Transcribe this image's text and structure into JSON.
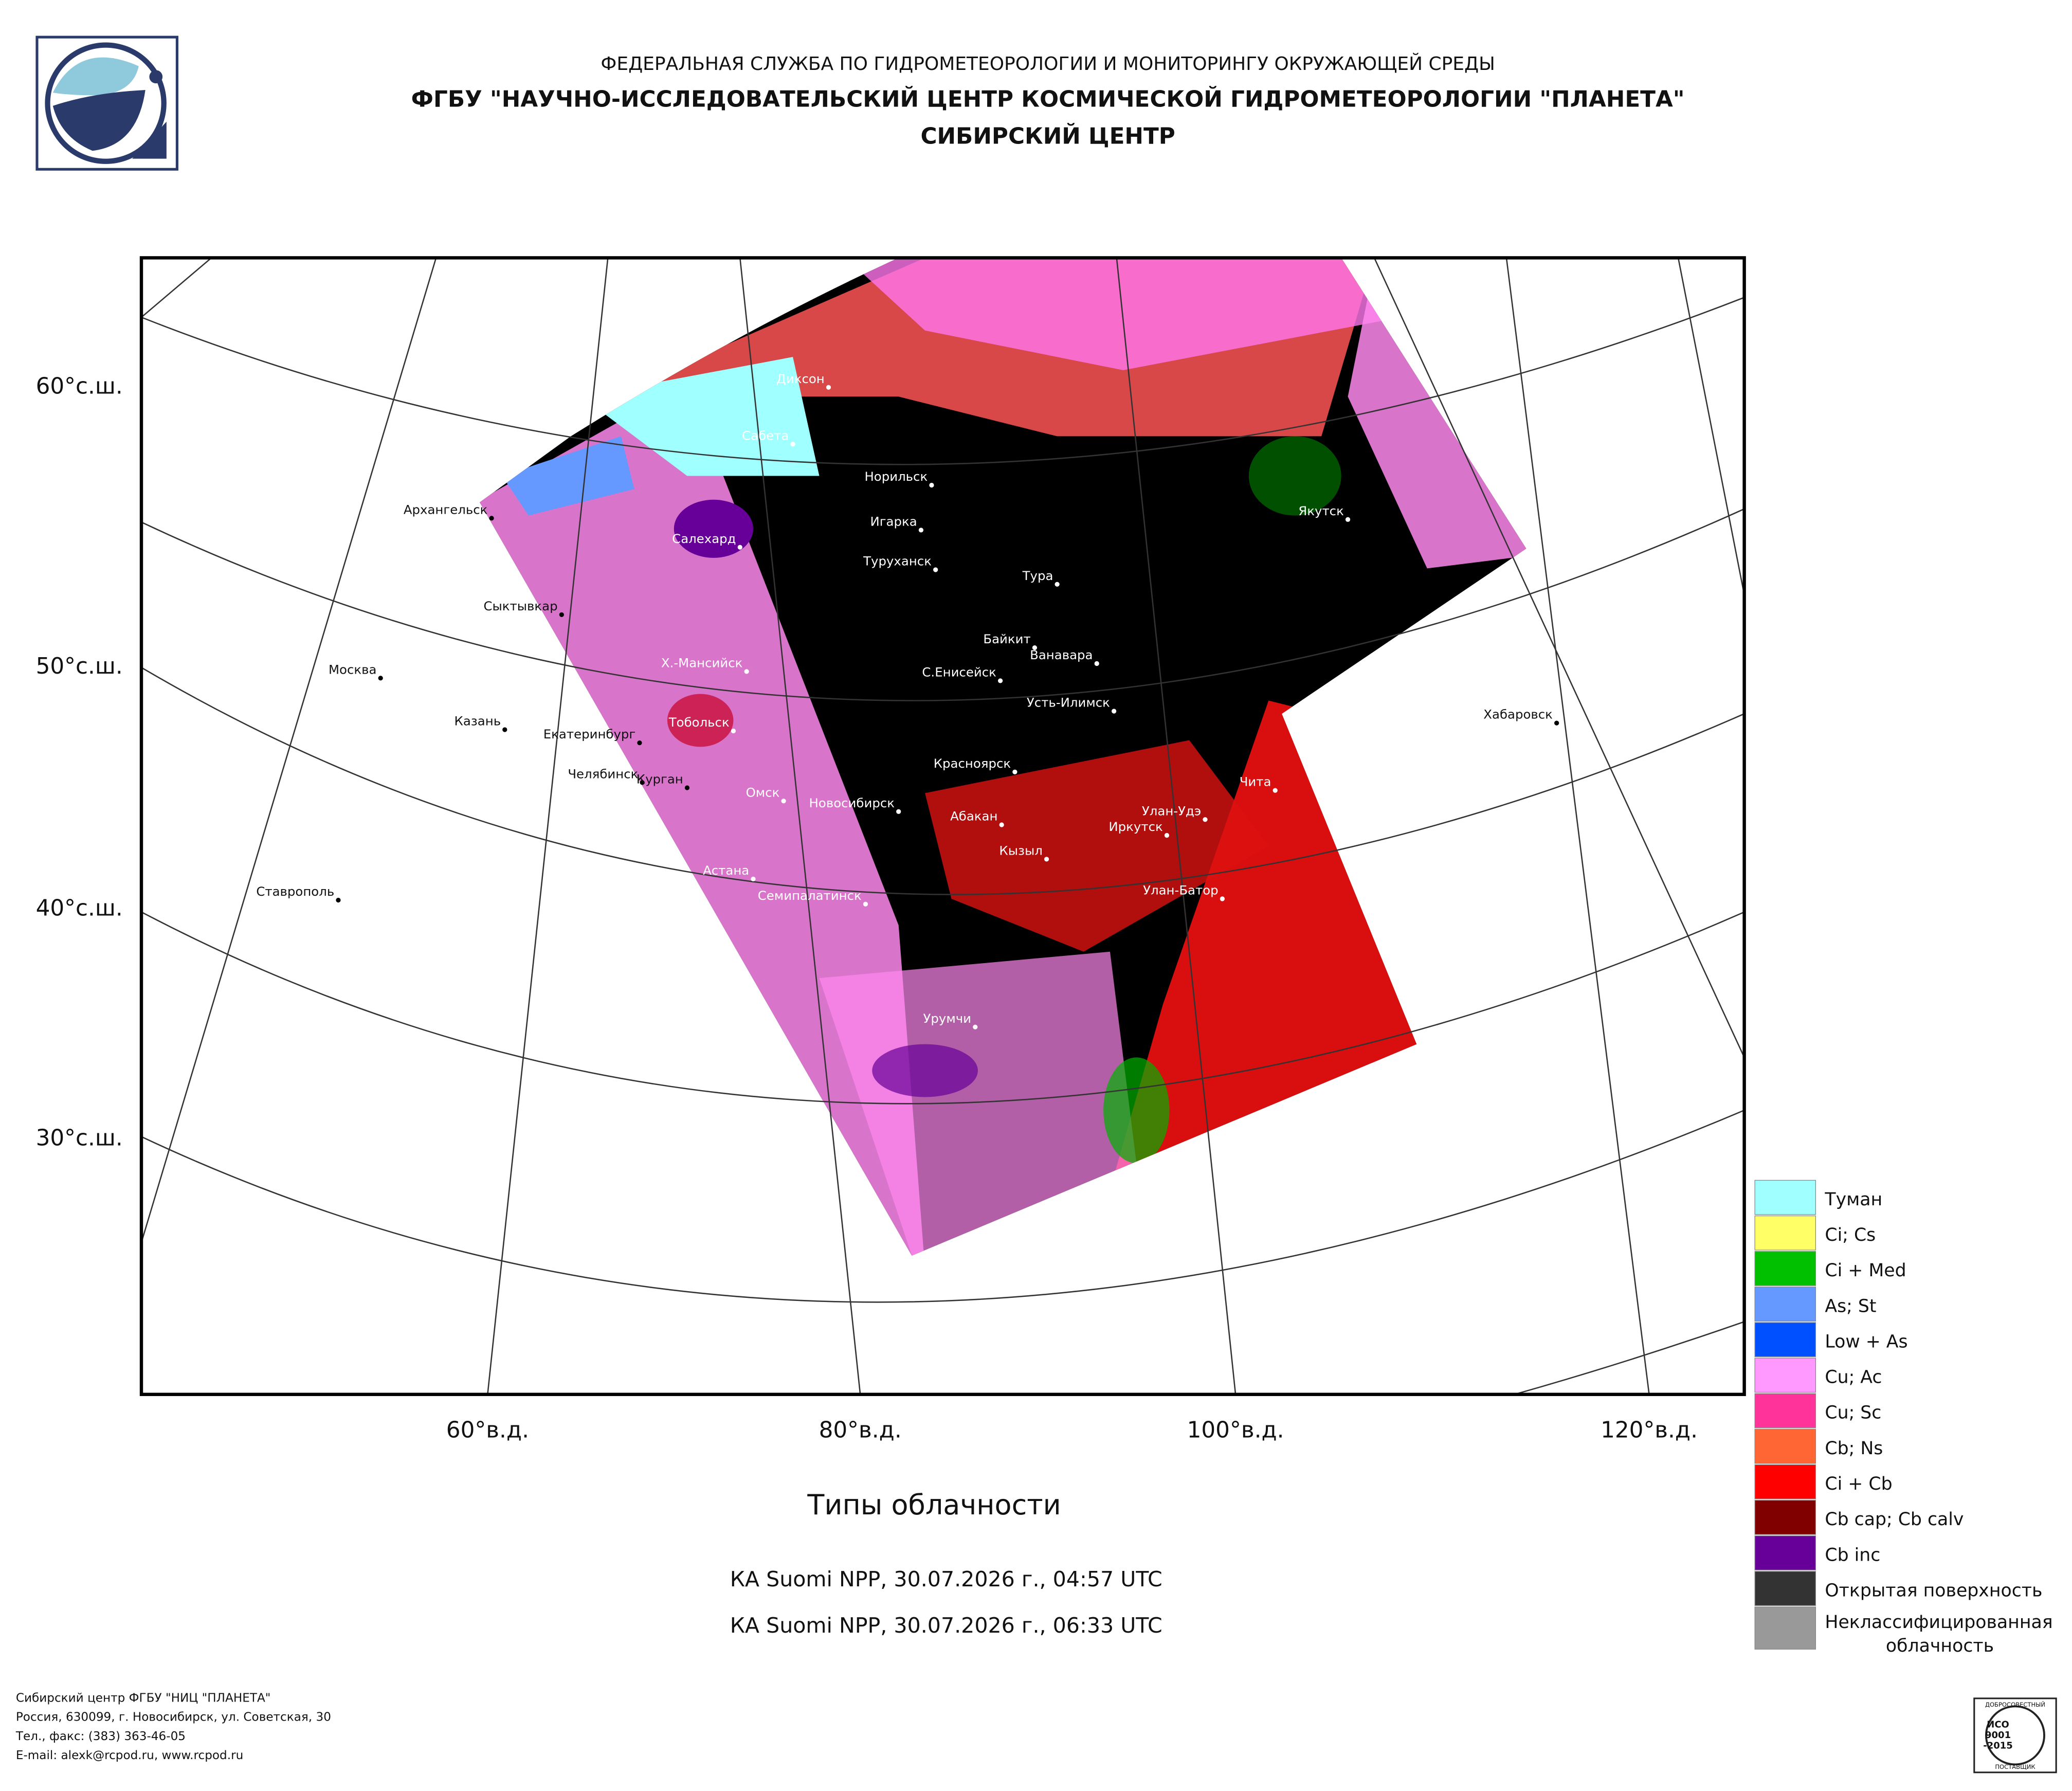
{
  "header": {
    "agency": "ФЕДЕРАЛЬНАЯ СЛУЖБА ПО ГИДРОМЕТЕОРОЛОГИИ И МОНИТОРИНГУ ОКРУЖАЮЩЕЙ СРЕДЫ",
    "center": "ФГБУ \"НАУЧНО-ИССЛЕДОВАТЕЛЬСКИЙ ЦЕНТР КОСМИЧЕСКОЙ ГИДРОМЕТЕОРОЛОГИИ \"ПЛАНЕТА\"",
    "branch": "СИБИРСКИЙ ЦЕНТР"
  },
  "map": {
    "lat_labels": [
      "60°с.ш.",
      "50°с.ш.",
      "40°с.ш.",
      "30°с.ш."
    ],
    "lon_labels": [
      "60°в.д.",
      "80°в.д.",
      "100°в.д.",
      "120°в.д."
    ],
    "cities": [
      "Диксон",
      "Сабета",
      "Норильск",
      "Архангельск",
      "Игарка",
      "Салехард",
      "Якутск",
      "Туруханск",
      "Тура",
      "Сыктывкар",
      "Байкит",
      "Ванавара",
      "Москва",
      "Х.-Мансийск",
      "С.Енисейск",
      "Усть-Илимск",
      "Хабаровск",
      "Казань",
      "Тобольск",
      "Екатеринбург",
      "Красноярск",
      "Челябинск",
      "Курган",
      "Чита",
      "Омск",
      "Новосибирск",
      "Абакан",
      "Улан-Удэ",
      "Иркутск",
      "Кызыл",
      "Астана",
      "Ставрополь",
      "Улан-Батор",
      "Семипалатинск",
      "Урумчи"
    ]
  },
  "legend": {
    "items": [
      {
        "label": "Туман",
        "color": "#a0ffff"
      },
      {
        "label": "Ci; Cs",
        "color": "#ffff66"
      },
      {
        "label": "Ci + Med",
        "color": "#00c000"
      },
      {
        "label": "As; St",
        "color": "#6699ff"
      },
      {
        "label": "Low + As",
        "color": "#0050ff"
      },
      {
        "label": "Cu; Ac",
        "color": "#ff99ff"
      },
      {
        "label": "Cu; Sc",
        "color": "#ff3399"
      },
      {
        "label": "Cb; Ns",
        "color": "#ff6633"
      },
      {
        "label": "Ci + Cb",
        "color": "#ff0000"
      },
      {
        "label": "Cb cap; Cb calv",
        "color": "#800000"
      },
      {
        "label": "Cb inc",
        "color": "#660099"
      },
      {
        "label": "Открытая поверхность",
        "color": "#333333"
      },
      {
        "label": "Неклассифицированная облачность",
        "color": "#999999"
      }
    ]
  },
  "title": "Типы облачности",
  "passes": [
    "КА Suomi NPP, 30.07.2026 г., 04:57 UTC",
    "КА Suomi NPP, 30.07.2026 г., 06:33 UTC"
  ],
  "footer": {
    "lines": [
      "Сибирский центр ФГБУ \"НИЦ \"ПЛАНЕТА\"",
      "Россия, 630099, г. Новосибирск, ул. Советская, 30",
      "Тел., факс: (383) 363-46-05",
      "E-mail: alexk@rcpod.ru, www.rcpod.ru"
    ]
  },
  "certificate": {
    "top": "ДОБРОСОВЕСТНЫЙ",
    "lines": [
      "ИСО",
      "9001",
      "-2015"
    ],
    "bottom": "ПОСТАВЩИК"
  }
}
